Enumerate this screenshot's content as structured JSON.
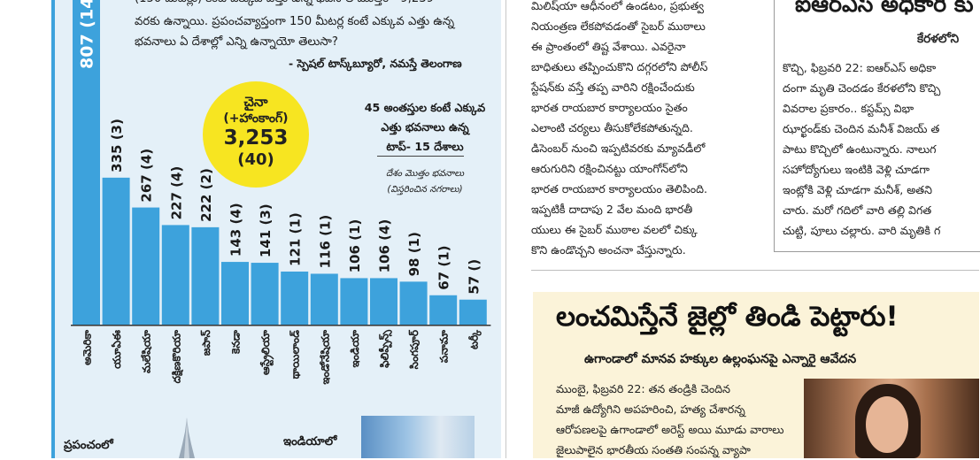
{
  "infographic": {
    "intro_lines": [
      "(150 మీటర్లు) కంటే ఎక్కువ ఎత్తు ఉన్న భవనాల మొత్తం - 9,239",
      "వరకు ఉన్నాయి. ప్రపంచవ్యాప్తంగా 150 మీటర్ల కంటే ఎక్కువ ఎత్తు ఉన్న",
      "భవనాలు ఏ దేశాల్లో ఎన్ని ఉన్నాయో తెలుసా?"
    ],
    "credit": "- స్పెషల్ టాస్క్‌బ్యూరో, నమస్తే తెలంగాణ",
    "highlight": {
      "country": "చైనా",
      "sub": "(+హాంకాంగ్)",
      "value": "3,253",
      "cities": "(40)"
    },
    "title_lines": [
      "45 అంతస్తుల కంటే ఎక్కువ",
      "ఎత్తు భవనాలు ఉన్న",
      "టాప్- 15 దేశాలు"
    ],
    "notes": [
      "దేశం మొత్తం భవనాలు",
      "(విస్తరించిన నగరాలు)"
    ],
    "bottom_left_label": "ప్రపంచంలో",
    "bottom_mid_label": "ఇండియాలో",
    "colors": {
      "bar": "#3da2dc",
      "highlight": "#f7e521",
      "background": "#e4f0f8"
    }
  },
  "chart_data": {
    "type": "bar",
    "categories": [
      "అమెరికా",
      "యూఏఈ",
      "మలేషియా",
      "దక్షిణకొరియా",
      "జపాన్",
      "కెనడా",
      "ఆస్ట్రేలియా",
      "థాయిలాండ్",
      "ఇండోనేషియా",
      "ఇండియా",
      "ఫిలిప్పీన్స్",
      "సింగపూర్",
      "పనామా",
      "టర్కీ"
    ],
    "values": [
      807,
      335,
      267,
      227,
      222,
      143,
      141,
      121,
      116,
      106,
      106,
      98,
      67,
      57
    ],
    "value_labels": [
      "807 (14",
      "335 (3)",
      "267 (4)",
      "227 (4)",
      "222 (2)",
      "143 (4)",
      "141 (3)",
      "121 (1)",
      "116 (1)",
      "106 (1)",
      "106 (4)",
      "98 (1)",
      "67 (1)",
      "57 ()"
    ],
    "ylim": [
      0,
      1000
    ],
    "grid": false
  },
  "middle_column": {
    "lines": [
      "మిలిష్‌యా ఆధీనంలో ఉండటం, ప్రభుత్వ",
      "నియంత్రణ లేకపోవడంతో సైబర్ ముఠాలు",
      "ఈ ప్రాంతంలో తిష్ట వేశాయి. ఎవరైనా",
      "బాధితులు తప్పించుకొని దగ్గరలోని పోలీస్",
      "స్టేషన్‌కు వస్తే తప్ప వారిని రక్షించేందుకు",
      "భారత రాయబార కార్యాలయం సైతం",
      "ఎలాంటి చర్యలు తీసుకోలేకపోతున్నది.",
      "డిసెంబర్ నుంచి ఇప్పటివరకు మ్యావడీలో",
      "ఆరుగురిని రక్షించినట్టు యాంగోన్‌లోని",
      "భారత రాయబార కార్యాలయం తెలిపింది.",
      "ఇప్పటికీ దాదాపు 2 వేల మంది భారతీ",
      "యులు ఈ సైబర్ ముఠాల వలలో చిక్కు",
      "కొని ఉండొచ్చని అంచనా వేస్తున్నారు."
    ]
  },
  "right_article": {
    "headline": "ఐఆర్ఎస్ అధికారి కు",
    "subhead": "కేరళలోని",
    "lines": [
      "కొచ్చి, ఫిబ్రవరి 22: ఐఆర్ఎస్ అధికా",
      "దంగా మృతి చెందడం కేరళలోని కొచ్చి",
      "వివరాల ప్రకారం.. కస్టమ్స్ విభా",
      "ఝార్ఖండ్‌కు చెందిన మనీశ్ విజయ్ త",
      "పాటు కొచ్చిలో ఉంటున్నారు. నాలుగ",
      "సహోద్యోగులు ఇంటికి వెళ్లి చూడగా",
      "ఇంట్లోకి వెళ్లి చూడగా మనీశ్, అతని",
      "చారు. మరో గదిలో వారి తల్లి విగత",
      "చుట్టి, పూలు చల్లారు. వారి మృతికి గ"
    ]
  },
  "lower_article": {
    "headline": "లంచమిస్తేనే జైల్లో తిండి పెట్టారు!",
    "subhead": "ఉగాండాలో మానవ హక్కుల ఉల్లంఘనపై ఎన్నారై ఆవేదన",
    "lines": [
      "ముంబై, ఫిబ్రవరి 22: తన తండ్రికి చెందిన",
      "మాజీ ఉద్యోగిని అపహరించి, హత్య చేశారన్న",
      "ఆరోపణలపై ఉగాండాలో అరెస్ట్ అయి మూడు వారాలు",
      "జైలుపాలైన భారతీయ సంతతి సంపన్న వ్యాపా"
    ]
  }
}
